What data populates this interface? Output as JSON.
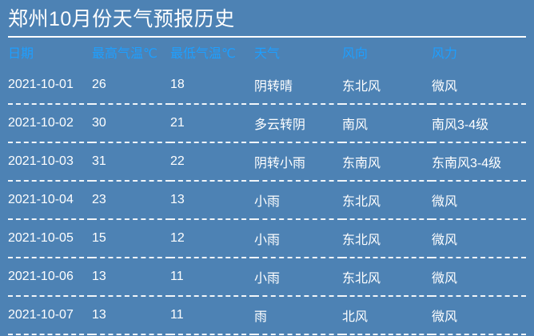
{
  "page": {
    "title": "郑州10月份天气预报历史",
    "colors": {
      "background": "#4D82B4",
      "header_text": "#1E9FFF",
      "body_text": "#FFFFFF",
      "divider": "#FFFFFF"
    }
  },
  "table": {
    "columns": [
      {
        "key": "date",
        "label": "日期"
      },
      {
        "key": "max_temp",
        "label": "最高气温℃"
      },
      {
        "key": "min_temp",
        "label": "最低气温℃"
      },
      {
        "key": "weather",
        "label": "天气"
      },
      {
        "key": "wind_direction",
        "label": "风向"
      },
      {
        "key": "wind_force",
        "label": "风力"
      }
    ],
    "rows": [
      {
        "date": "2021-10-01",
        "max_temp": "26",
        "min_temp": "18",
        "weather": "阴转晴",
        "wind_direction": "东北风",
        "wind_force": "微风"
      },
      {
        "date": "2021-10-02",
        "max_temp": "30",
        "min_temp": "21",
        "weather": "多云转阴",
        "wind_direction": "南风",
        "wind_force": "南风3-4级"
      },
      {
        "date": "2021-10-03",
        "max_temp": "31",
        "min_temp": "22",
        "weather": "阴转小雨",
        "wind_direction": "东南风",
        "wind_force": "东南风3-4级"
      },
      {
        "date": "2021-10-04",
        "max_temp": "23",
        "min_temp": "13",
        "weather": "小雨",
        "wind_direction": "东北风",
        "wind_force": "微风"
      },
      {
        "date": "2021-10-05",
        "max_temp": "15",
        "min_temp": "12",
        "weather": "小雨",
        "wind_direction": "东北风",
        "wind_force": "微风"
      },
      {
        "date": "2021-10-06",
        "max_temp": "13",
        "min_temp": "11",
        "weather": "小雨",
        "wind_direction": "东北风",
        "wind_force": "微风"
      },
      {
        "date": "2021-10-07",
        "max_temp": "13",
        "min_temp": "11",
        "weather": "雨",
        "wind_direction": "北风",
        "wind_force": "微风"
      }
    ]
  }
}
